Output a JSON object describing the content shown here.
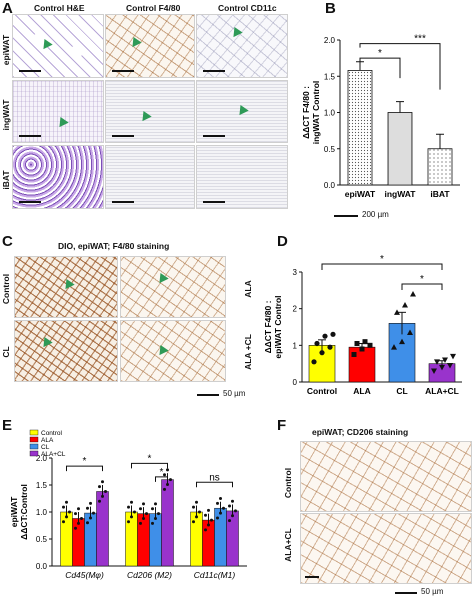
{
  "panels": {
    "A": {
      "label": "A",
      "col_headers": [
        "Control H&E",
        "Control F4/80",
        "Control CD11c"
      ],
      "row_labels": [
        "epiWAT",
        "ingWAT",
        "iBAT"
      ],
      "scale": "200 µm"
    },
    "B": {
      "label": "B"
    },
    "C": {
      "label": "C",
      "title": "DIO, epiWAT; F4/80 staining",
      "left_labels": [
        "Control",
        "CL"
      ],
      "right_labels": [
        "ALA",
        "ALA +CL"
      ],
      "scale": "50 µm"
    },
    "D": {
      "label": "D"
    },
    "E": {
      "label": "E"
    },
    "F": {
      "label": "F",
      "title": "epiWAT; CD206 staining",
      "row_labels": [
        "Control",
        "ALA+CL"
      ],
      "scale": "50 µm"
    }
  },
  "chart_data": [
    {
      "panel": "B",
      "type": "bar",
      "categories": [
        "epiWAT",
        "ingWAT",
        "iBAT"
      ],
      "values": [
        1.58,
        1.0,
        0.5
      ],
      "errors": [
        0.12,
        0.15,
        0.2
      ],
      "ylabel": "ΔΔCT F4/80 :\ningWAT Control",
      "ylim": [
        0,
        2.0
      ],
      "yticks": [
        "0.0",
        "0.5",
        "1.0",
        "1.5",
        "2.0"
      ],
      "significance": [
        {
          "pair": [
            "epiWAT",
            "ingWAT"
          ],
          "label": "*"
        },
        {
          "pair": [
            "epiWAT",
            "iBAT"
          ],
          "label": "***"
        }
      ]
    },
    {
      "panel": "D",
      "type": "bar",
      "categories": [
        "Control",
        "ALA",
        "CL",
        "ALA+CL"
      ],
      "values": [
        1.0,
        0.95,
        1.6,
        0.5
      ],
      "errors": [
        0.15,
        0.1,
        0.3,
        0.08
      ],
      "colors": [
        "#ffff00",
        "#ff0000",
        "#3f8fe8",
        "#9933cc"
      ],
      "points": [
        [
          0.55,
          0.8,
          0.95,
          1.05,
          1.25,
          1.3
        ],
        [
          0.75,
          0.9,
          1.0,
          1.05,
          1.1
        ],
        [
          0.95,
          1.1,
          1.35,
          1.9,
          2.1,
          2.4
        ],
        [
          0.3,
          0.4,
          0.45,
          0.55,
          0.6,
          0.7
        ]
      ],
      "markers": [
        "circle",
        "square",
        "triangle",
        "triangle-down"
      ],
      "ylabel": "ΔΔCT F4/80 :\nepiWAT Control",
      "ylim": [
        0,
        3
      ],
      "yticks": [
        "0",
        "1",
        "2",
        "3"
      ],
      "significance": [
        {
          "pair": [
            "Control",
            "ALA+CL"
          ],
          "label": "*"
        },
        {
          "pair": [
            "CL",
            "ALA+CL"
          ],
          "label": "*"
        }
      ]
    },
    {
      "panel": "E",
      "type": "bar",
      "categories": [
        "Cd45(Mφ)",
        "Cd206 (M2)",
        "Cd11c(M1)"
      ],
      "series": [
        {
          "name": "Control",
          "values": [
            1.0,
            1.0,
            1.0
          ],
          "color": "#ffff00"
        },
        {
          "name": "ALA",
          "values": [
            0.88,
            0.97,
            0.85
          ],
          "color": "#ff0000"
        },
        {
          "name": "CL",
          "values": [
            0.98,
            0.97,
            1.07
          ],
          "color": "#3f8fe8"
        },
        {
          "name": "ALA+CL",
          "values": [
            1.38,
            1.6,
            1.02
          ],
          "color": "#9933cc"
        }
      ],
      "ylabel": "epiWAT\nΔΔCT:Control",
      "ylim": [
        0,
        2.0
      ],
      "yticks": [
        "0.0",
        "0.5",
        "1.0",
        "1.5",
        "2.0"
      ],
      "significance": [
        {
          "group": "Cd45(Mφ)",
          "label": "*"
        },
        {
          "group": "Cd206 (M2)",
          "label": "*"
        },
        {
          "group": "Cd206 (M2)",
          "label": "*"
        },
        {
          "group": "Cd11c(M1)",
          "label": "ns"
        }
      ]
    }
  ]
}
